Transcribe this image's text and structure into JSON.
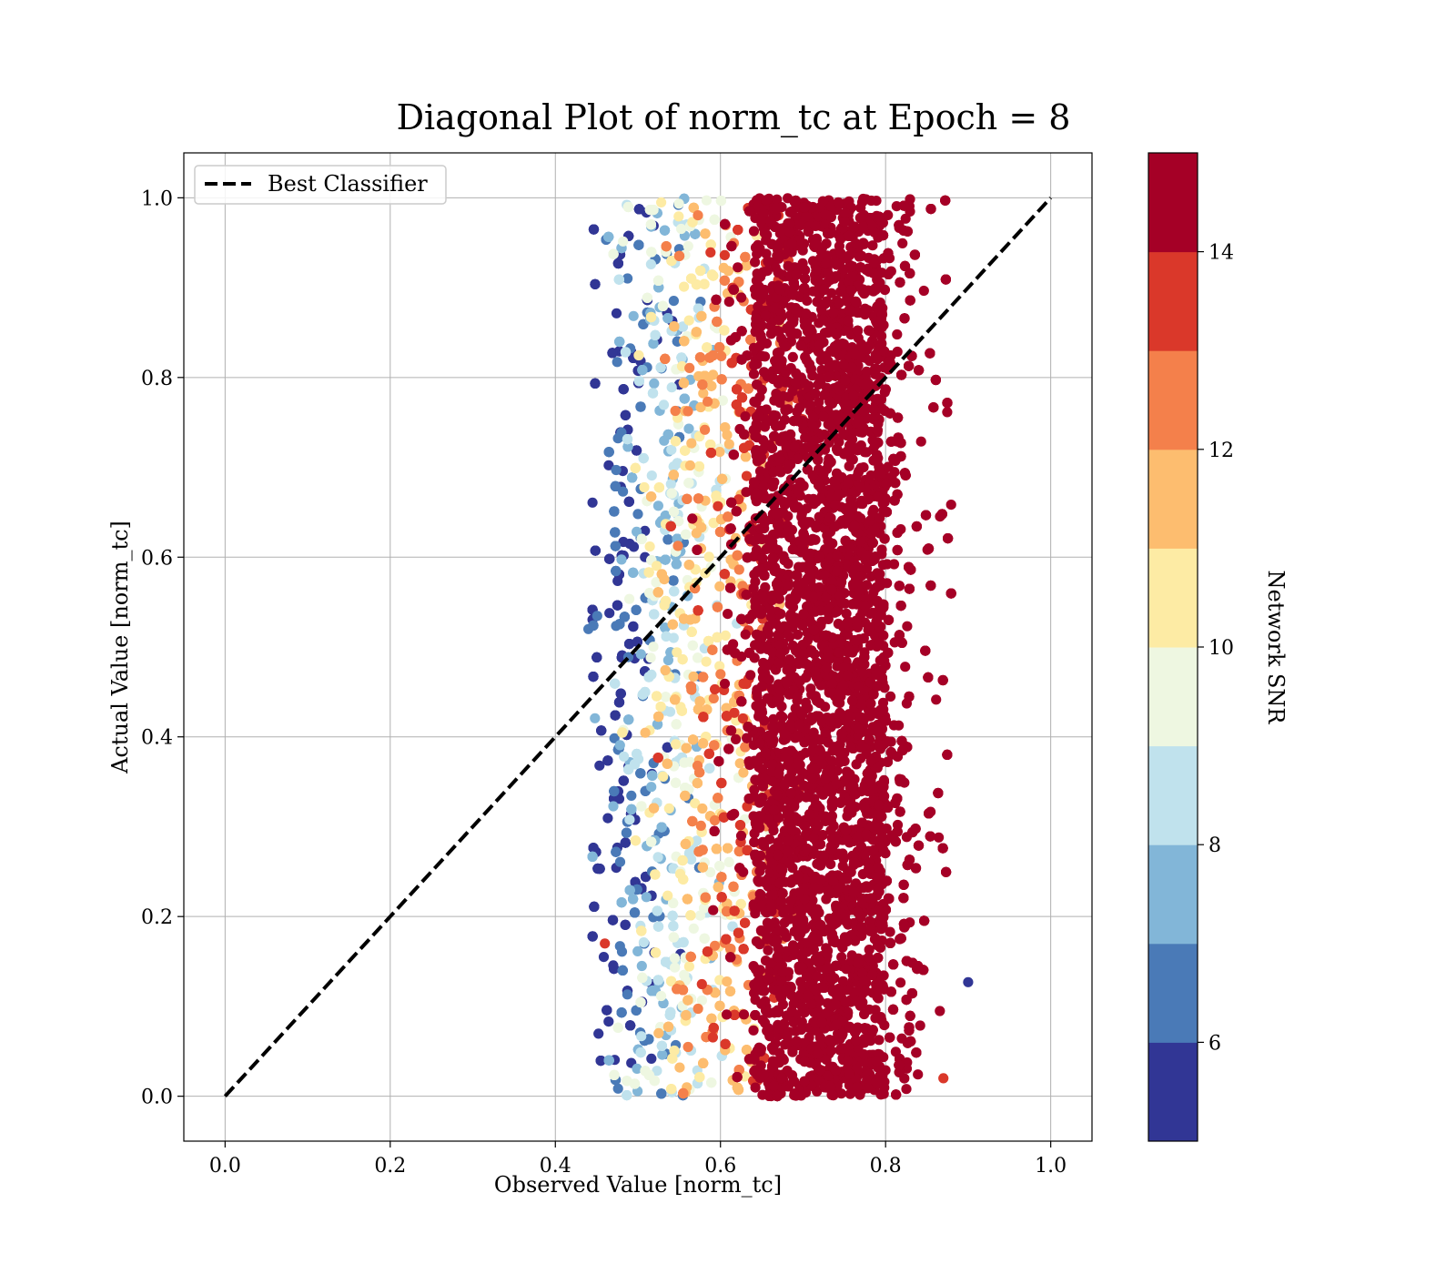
{
  "chart_data": {
    "type": "scatter",
    "title": "Diagonal Plot of norm_tc at Epoch = 8",
    "xlabel": "Observed Value [norm_tc]",
    "ylabel": "Actual Value [norm_tc]",
    "xlim": [
      -0.05,
      1.05
    ],
    "ylim": [
      -0.05,
      1.05
    ],
    "xticks": [
      0.0,
      0.2,
      0.4,
      0.6,
      0.8,
      1.0
    ],
    "yticks": [
      0.0,
      0.2,
      0.4,
      0.6,
      0.8,
      1.0
    ],
    "xtick_labels": [
      "0.0",
      "0.2",
      "0.4",
      "0.6",
      "0.8",
      "1.0"
    ],
    "ytick_labels": [
      "0.0",
      "0.2",
      "0.4",
      "0.6",
      "0.8",
      "1.0"
    ],
    "grid": true,
    "legend": {
      "placement": "upper-left",
      "entries": [
        {
          "label": "Best Classifier",
          "style": "dashed",
          "color": "#000000"
        }
      ]
    },
    "reference_line": {
      "name": "Best Classifier",
      "x": [
        0.0,
        1.0
      ],
      "y": [
        0.0,
        1.0
      ]
    },
    "scatter_distribution": {
      "x_range": [
        0.44,
        0.9
      ],
      "y_range": [
        0.0,
        1.0
      ],
      "color_by": "Network SNR",
      "snr_trend": "higher observed value corresponds to higher SNR; dense saturated region above 0.65"
    },
    "colorbar": {
      "label": "Network SNR",
      "range": [
        5,
        15
      ],
      "ticks": [
        6,
        8,
        10,
        12,
        14
      ],
      "tick_labels": [
        "6",
        "8",
        "10",
        "12",
        "14"
      ],
      "bins": [
        {
          "from": 5,
          "to": 6,
          "color": "#313695"
        },
        {
          "from": 6,
          "to": 7,
          "color": "#4a7ab7"
        },
        {
          "from": 7,
          "to": 8,
          "color": "#82b6d8"
        },
        {
          "from": 8,
          "to": 9,
          "color": "#c0e2ed"
        },
        {
          "from": 9,
          "to": 10,
          "color": "#eef7e1"
        },
        {
          "from": 10,
          "to": 11,
          "color": "#fdeba4"
        },
        {
          "from": 11,
          "to": 12,
          "color": "#fdbd6f"
        },
        {
          "from": 12,
          "to": 13,
          "color": "#f4804b"
        },
        {
          "from": 13,
          "to": 14,
          "color": "#da382a"
        },
        {
          "from": 14,
          "to": 15,
          "color": "#a50026"
        }
      ]
    }
  }
}
